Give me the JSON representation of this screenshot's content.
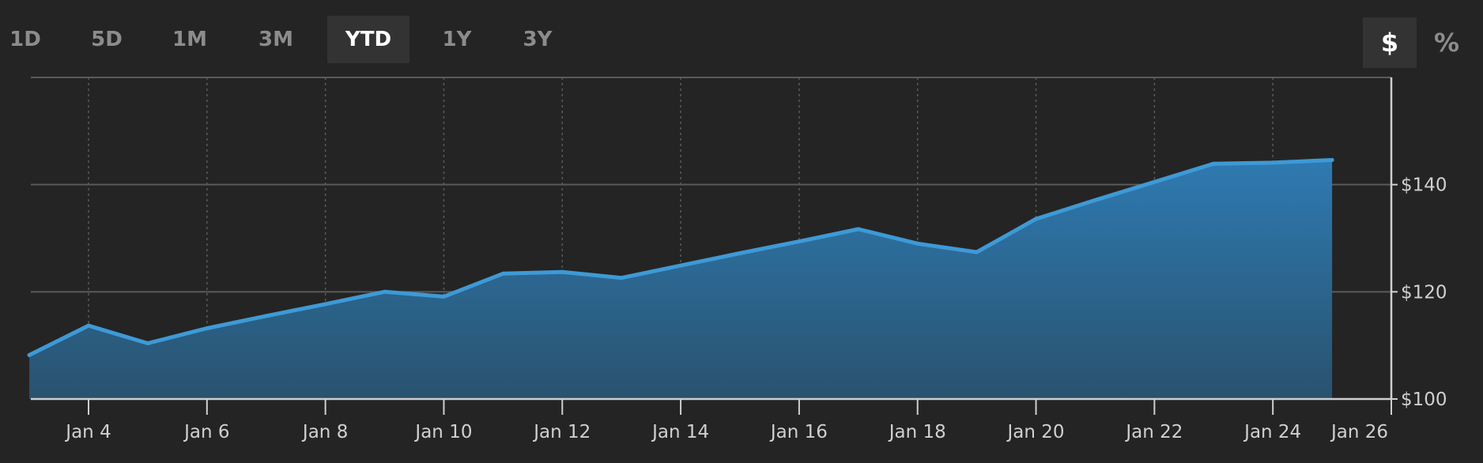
{
  "range_buttons": [
    {
      "label": "1D",
      "active": false
    },
    {
      "label": "5D",
      "active": false
    },
    {
      "label": "1M",
      "active": false
    },
    {
      "label": "3M",
      "active": false
    },
    {
      "label": "YTD",
      "active": true
    },
    {
      "label": "1Y",
      "active": false
    },
    {
      "label": "3Y",
      "active": false
    }
  ],
  "unit_toggle": {
    "dollar_label": "$",
    "percent_label": "%",
    "selected": "$"
  },
  "colors": {
    "background": "#242424",
    "line": "#3d9ad6",
    "area_top": "#2e7ab2",
    "area_bottom": "#29526e",
    "grid": "#5a5a5a",
    "axis": "#cfcfcf"
  },
  "chart_data": {
    "type": "area",
    "x_axis_ticks": [
      "Jan 4",
      "Jan 6",
      "Jan 8",
      "Jan 10",
      "Jan 12",
      "Jan 14",
      "Jan 16",
      "Jan 18",
      "Jan 20",
      "Jan 22",
      "Jan 24",
      "Jan 26"
    ],
    "y_axis_ticks": [
      "$100",
      "$120",
      "$140"
    ],
    "ylim": [
      100,
      160
    ],
    "xlim": [
      "Jan 3",
      "Jan 26"
    ],
    "grid": true,
    "series": [
      {
        "points": [
          {
            "x": "Jan 3",
            "y": 108.2
          },
          {
            "x": "Jan 4",
            "y": 113.7
          },
          {
            "x": "Jan 5",
            "y": 110.4
          },
          {
            "x": "Jan 6",
            "y": 113.2
          },
          {
            "x": "Jan 7",
            "y": 115.5
          },
          {
            "x": "Jan 8",
            "y": 117.7
          },
          {
            "x": "Jan 9",
            "y": 120.0
          },
          {
            "x": "Jan 10",
            "y": 119.1
          },
          {
            "x": "Jan 11",
            "y": 123.4
          },
          {
            "x": "Jan 12",
            "y": 123.7
          },
          {
            "x": "Jan 13",
            "y": 122.6
          },
          {
            "x": "Jan 14",
            "y": 124.9
          },
          {
            "x": "Jan 15",
            "y": 127.2
          },
          {
            "x": "Jan 16",
            "y": 129.4
          },
          {
            "x": "Jan 17",
            "y": 131.7
          },
          {
            "x": "Jan 18",
            "y": 129.0
          },
          {
            "x": "Jan 19",
            "y": 127.4
          },
          {
            "x": "Jan 20",
            "y": 133.6
          },
          {
            "x": "Jan 21",
            "y": 137.1
          },
          {
            "x": "Jan 22",
            "y": 140.5
          },
          {
            "x": "Jan 23",
            "y": 143.9
          },
          {
            "x": "Jan 24",
            "y": 144.1
          },
          {
            "x": "Jan 25",
            "y": 144.6
          }
        ]
      }
    ]
  }
}
